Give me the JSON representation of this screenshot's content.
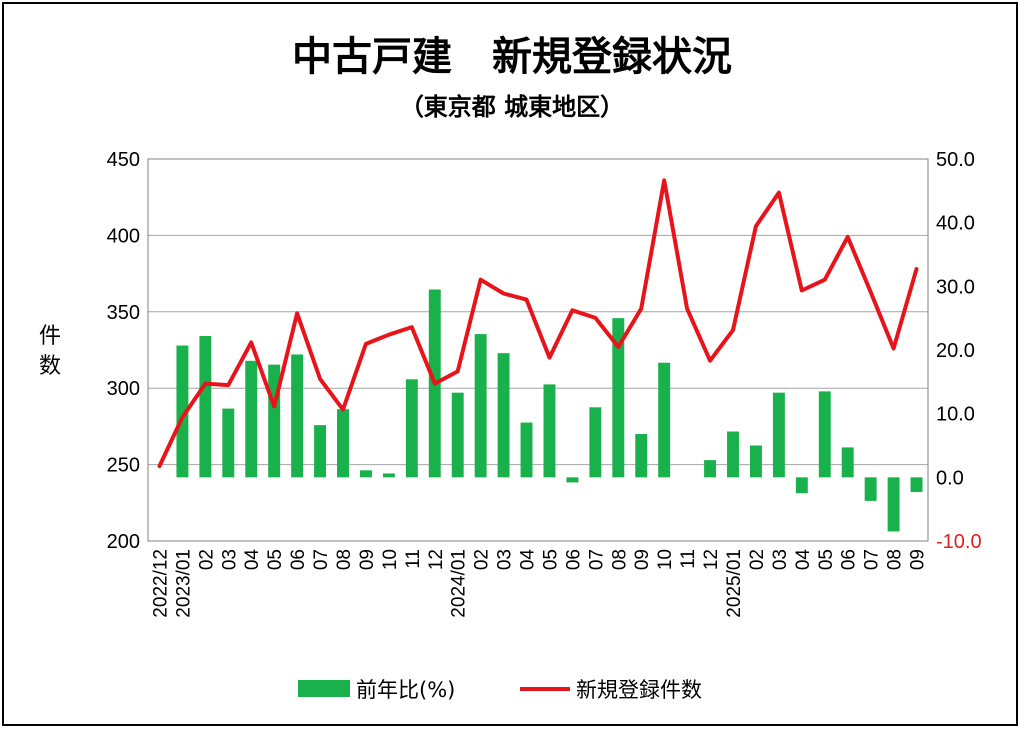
{
  "chart_data": {
    "type": "bar+line",
    "title": "中古戸建　新規登録状況",
    "subtitle": "（東京都 城東地区）",
    "ylabel_left": [
      "件",
      "数"
    ],
    "categories": [
      "2022/12",
      "2023/01",
      "02",
      "03",
      "04",
      "05",
      "06",
      "07",
      "08",
      "09",
      "10",
      "11",
      "12",
      "2024/01",
      "02",
      "03",
      "04",
      "05",
      "06",
      "07",
      "08",
      "09",
      "10",
      "11",
      "12",
      "2025/01",
      "02",
      "03",
      "04",
      "05",
      "06",
      "07",
      "08",
      "09"
    ],
    "left_axis": {
      "min": 200,
      "max": 450,
      "ticks": [
        "450",
        "400",
        "350",
        "300",
        "250",
        "200"
      ],
      "tick_values": [
        450,
        400,
        350,
        300,
        250,
        200
      ]
    },
    "right_axis": {
      "min": -10,
      "max": 50,
      "ticks": [
        "50.0",
        "40.0",
        "30.0",
        "20.0",
        "10.0",
        "0.0",
        "-10.0"
      ],
      "tick_values": [
        50,
        40,
        30,
        20,
        10,
        0,
        -10
      ],
      "negative_color": "#e0201c"
    },
    "series": [
      {
        "name": "前年比(%)",
        "type": "bar",
        "axis": "right",
        "color": "#19b14b",
        "values": [
          null,
          20.7,
          22.2,
          10.8,
          18.3,
          17.7,
          19.3,
          8.2,
          10.7,
          1.1,
          0.6,
          15.4,
          29.5,
          13.3,
          22.5,
          19.5,
          8.6,
          14.6,
          -0.8,
          11.0,
          25.0,
          6.8,
          18.0,
          null,
          2.7,
          7.2,
          5.0,
          13.3,
          -2.5,
          13.5,
          4.7,
          -3.7,
          -8.5,
          -2.3
        ]
      },
      {
        "name": "新規登録件数",
        "type": "line",
        "axis": "left",
        "color": "#e8141b",
        "values": [
          249,
          281,
          303,
          302,
          330,
          288,
          349,
          306,
          286,
          329,
          335,
          340,
          303,
          311,
          371,
          362,
          358,
          320,
          351,
          346,
          327,
          352,
          436,
          352,
          318,
          338,
          406,
          428,
          364,
          371,
          399,
          363,
          326,
          378
        ]
      }
    ],
    "legend": {
      "placement": "bottom",
      "items": [
        "前年比(%)",
        "新規登録件数"
      ]
    },
    "grid": true
  }
}
